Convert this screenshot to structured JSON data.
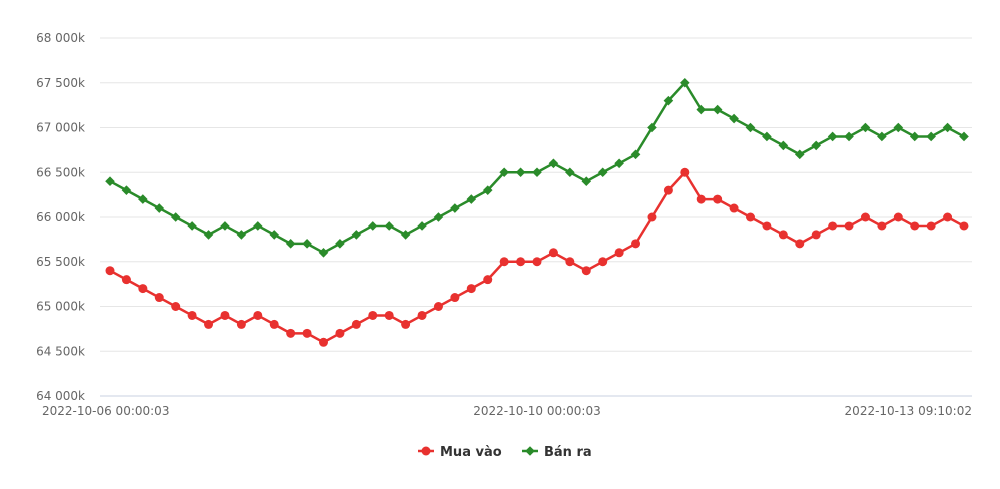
{
  "chart_data": {
    "type": "line",
    "title": "",
    "xlabel": "",
    "ylabel": "",
    "ylim": [
      64000,
      68000
    ],
    "y_ticks": [
      64000,
      64500,
      65000,
      65500,
      66000,
      66500,
      67000,
      67500,
      68000
    ],
    "y_tick_labels": [
      "64 000k",
      "64 500k",
      "65 000k",
      "65 500k",
      "66 000k",
      "66 500k",
      "67 000k",
      "67 500k",
      "68 000k"
    ],
    "x_tick_labels": [
      {
        "index": 0,
        "label": "2022-10-06 00:00:03"
      },
      {
        "index": 26,
        "label": "2022-10-10 00:00:03"
      },
      {
        "index": 53,
        "label": "2022-10-13 09:10:02"
      }
    ],
    "grid": true,
    "legend_position": "bottom-center",
    "series": [
      {
        "name": "Mua vào",
        "color": "#e8312f",
        "marker": "circle",
        "values": [
          65400,
          65300,
          65200,
          65100,
          65000,
          64900,
          64800,
          64900,
          64800,
          64900,
          64800,
          64700,
          64700,
          64600,
          64700,
          64800,
          64900,
          64900,
          64800,
          64900,
          65000,
          65100,
          65200,
          65300,
          65500,
          65500,
          65500,
          65600,
          65500,
          65400,
          65500,
          65600,
          65700,
          66000,
          66300,
          66500,
          66200,
          66200,
          66100,
          66000,
          65900,
          65800,
          65700,
          65800,
          65900,
          65900,
          66000,
          65900,
          66000,
          65900,
          65900,
          66000,
          65900
        ]
      },
      {
        "name": "Bán ra",
        "color": "#2a8b2a",
        "marker": "diamond",
        "values": [
          66400,
          66300,
          66200,
          66100,
          66000,
          65900,
          65800,
          65900,
          65800,
          65900,
          65800,
          65700,
          65700,
          65600,
          65700,
          65800,
          65900,
          65900,
          65800,
          65900,
          66000,
          66100,
          66200,
          66300,
          66500,
          66500,
          66500,
          66600,
          66500,
          66400,
          66500,
          66600,
          66700,
          67000,
          67300,
          67500,
          67200,
          67200,
          67100,
          67000,
          66900,
          66800,
          66700,
          66800,
          66900,
          66900,
          67000,
          66900,
          67000,
          66900,
          66900,
          67000,
          66900
        ]
      }
    ]
  }
}
